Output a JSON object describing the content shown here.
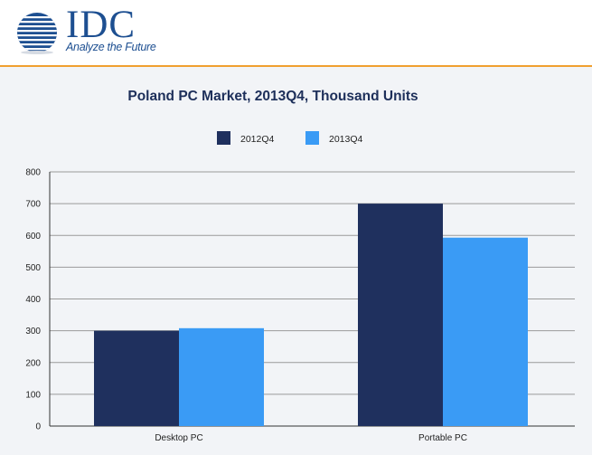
{
  "brand": {
    "name": "IDC",
    "tagline": "Analyze the Future",
    "accent_color": "#f0a030",
    "brand_color": "#1d4f91"
  },
  "chart_data": {
    "type": "bar",
    "title": "Poland PC Market, 2013Q4, Thousand Units",
    "categories": [
      "Desktop PC",
      "Portable PC"
    ],
    "series": [
      {
        "name": "2012Q4",
        "values": [
          300,
          700
        ],
        "color": "#1f305e"
      },
      {
        "name": "2013Q4",
        "values": [
          308,
          593
        ],
        "color": "#3a9bf5"
      }
    ],
    "xlabel": "",
    "ylabel": "",
    "ylim": [
      0,
      800
    ],
    "yticks": [
      0,
      100,
      200,
      300,
      400,
      500,
      600,
      700,
      800
    ],
    "grid": true,
    "legend": "top-center"
  }
}
